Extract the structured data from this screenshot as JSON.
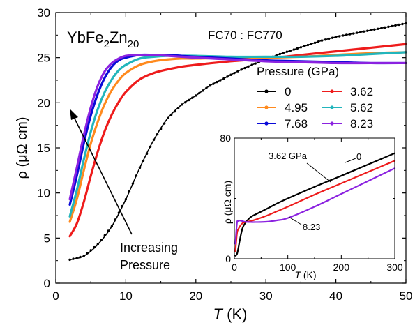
{
  "chart_data": [
    {
      "type": "line",
      "title": "YbFe2Zn20",
      "title_parts": {
        "base": "YbFe",
        "sub1": "2",
        "mid": "Zn",
        "sub2": "20"
      },
      "subtitle": "FC70 : FC770",
      "xlabel": "T (K)",
      "xlabel_parts": {
        "var": "T",
        "unit": " (K)"
      },
      "ylabel": "ρ (μΩ cm)",
      "xlim": [
        0,
        50
      ],
      "ylim": [
        0,
        30
      ],
      "xticks": [
        "0",
        "10",
        "20",
        "30",
        "40",
        "50"
      ],
      "yticks": [
        "0",
        "5",
        "10",
        "15",
        "20",
        "25",
        "30"
      ],
      "legend_title": "Pressure (GPa)",
      "legend_position": "right",
      "annotation": {
        "line1": "Increasing",
        "line2": "Pressure"
      },
      "series": [
        {
          "name": "0",
          "color": "#000000",
          "x": [
            2,
            4,
            6,
            8,
            10,
            12,
            14,
            16,
            18,
            20,
            22,
            24,
            26,
            28,
            30,
            32,
            34,
            36,
            38,
            40,
            42,
            44,
            46,
            48,
            50
          ],
          "values": [
            2.6,
            3.0,
            4.3,
            6.3,
            9.3,
            12.8,
            15.9,
            18.3,
            19.8,
            20.8,
            21.9,
            22.7,
            23.5,
            24.2,
            24.8,
            25.4,
            25.9,
            26.4,
            26.9,
            27.3,
            27.6,
            27.9,
            28.2,
            28.5,
            28.8
          ]
        },
        {
          "name": "3.62",
          "color": "#ee1c1c",
          "x": [
            2,
            3,
            4,
            5,
            6,
            7,
            8,
            9,
            10,
            12,
            14,
            16,
            18,
            20,
            25,
            30,
            35,
            40,
            45,
            50
          ],
          "values": [
            5.2,
            6.6,
            9.0,
            11.9,
            14.6,
            16.9,
            18.7,
            20.1,
            21.2,
            22.6,
            23.3,
            23.7,
            24.0,
            24.2,
            24.6,
            24.9,
            25.3,
            25.7,
            26.1,
            26.5
          ]
        },
        {
          "name": "4.95",
          "color": "#ff8a1e",
          "x": [
            2,
            3,
            4,
            5,
            6,
            7,
            8,
            9,
            10,
            12,
            14,
            16,
            18,
            20,
            25,
            30,
            35,
            40,
            45,
            50
          ],
          "values": [
            6.8,
            9.3,
            12.5,
            15.5,
            17.9,
            19.9,
            21.4,
            22.5,
            23.3,
            24.2,
            24.6,
            24.8,
            24.9,
            24.9,
            25.0,
            25.0,
            25.1,
            25.3,
            25.5,
            25.6
          ]
        },
        {
          "name": "5.62",
          "color": "#22b5bc",
          "x": [
            2,
            3,
            4,
            5,
            6,
            7,
            8,
            9,
            10,
            12,
            14,
            16,
            18,
            20,
            25,
            30,
            35,
            40,
            45,
            50
          ],
          "values": [
            7.4,
            10.3,
            13.7,
            16.8,
            19.3,
            21.2,
            22.6,
            23.6,
            24.2,
            24.9,
            25.1,
            25.2,
            25.2,
            25.2,
            25.1,
            25.1,
            25.1,
            25.2,
            25.4,
            25.6
          ]
        },
        {
          "name": "7.68",
          "color": "#0a0ad8",
          "x": [
            2,
            3,
            4,
            5,
            6,
            7,
            8,
            9,
            10,
            12,
            14,
            16,
            18,
            20,
            25,
            30,
            35,
            40,
            45,
            50
          ],
          "values": [
            8.7,
            11.9,
            15.5,
            18.6,
            21.0,
            22.8,
            24.0,
            24.7,
            25.0,
            25.3,
            25.3,
            25.3,
            25.2,
            25.1,
            24.9,
            24.7,
            24.6,
            24.5,
            24.4,
            24.4
          ]
        },
        {
          "name": "8.23",
          "color": "#8b22e0",
          "x": [
            2,
            3,
            4,
            5,
            6,
            7,
            8,
            9,
            10,
            12,
            14,
            16,
            18,
            20,
            25,
            30,
            35,
            40,
            45,
            50
          ],
          "values": [
            9.3,
            12.8,
            16.4,
            19.5,
            21.9,
            23.5,
            24.4,
            24.9,
            25.2,
            25.3,
            25.3,
            25.2,
            25.1,
            25.0,
            24.8,
            24.6,
            24.5,
            24.4,
            24.4,
            24.4
          ]
        }
      ]
    },
    {
      "type": "line",
      "role": "inset",
      "xlabel": "T (K)",
      "xlabel_parts": {
        "var": "T",
        "unit": " (K)"
      },
      "ylabel": "ρ (μΩ cm)",
      "xlim": [
        0,
        300
      ],
      "ylim": [
        0,
        80
      ],
      "xticks": [
        "0",
        "100",
        "200",
        "300"
      ],
      "yticks": [
        "0",
        "80"
      ],
      "annotations": [
        {
          "text": "3.62 GPa",
          "series": "3.62"
        },
        {
          "text": "0",
          "series": "0"
        },
        {
          "text": "8.23",
          "series": "8.23"
        }
      ],
      "series": [
        {
          "name": "0",
          "color": "#000000",
          "x": [
            2,
            5,
            8,
            10,
            15,
            20,
            30,
            40,
            60,
            80,
            100,
            150,
            200,
            250,
            300
          ],
          "values": [
            2,
            3.2,
            8,
            12,
            20,
            23.5,
            27.5,
            29.5,
            33,
            36.7,
            40,
            47.7,
            55,
            62.5,
            70
          ]
        },
        {
          "name": "3.62",
          "color": "#ee1c1c",
          "x": [
            2,
            5,
            8,
            10,
            15,
            20,
            30,
            40,
            60,
            80,
            100,
            150,
            200,
            250,
            300
          ],
          "values": [
            5,
            17,
            20,
            21.3,
            23.5,
            24.3,
            25,
            26,
            28.5,
            31.5,
            34.5,
            42.5,
            50,
            57.5,
            65
          ]
        },
        {
          "name": "8.23",
          "color": "#8b22e0",
          "x": [
            2,
            5,
            8,
            10,
            15,
            20,
            30,
            40,
            60,
            80,
            100,
            150,
            200,
            250,
            300
          ],
          "values": [
            10,
            24,
            25,
            25.3,
            25,
            24.5,
            24.3,
            24.3,
            24.5,
            25.5,
            27,
            34.5,
            43,
            51.5,
            60
          ]
        }
      ]
    }
  ]
}
